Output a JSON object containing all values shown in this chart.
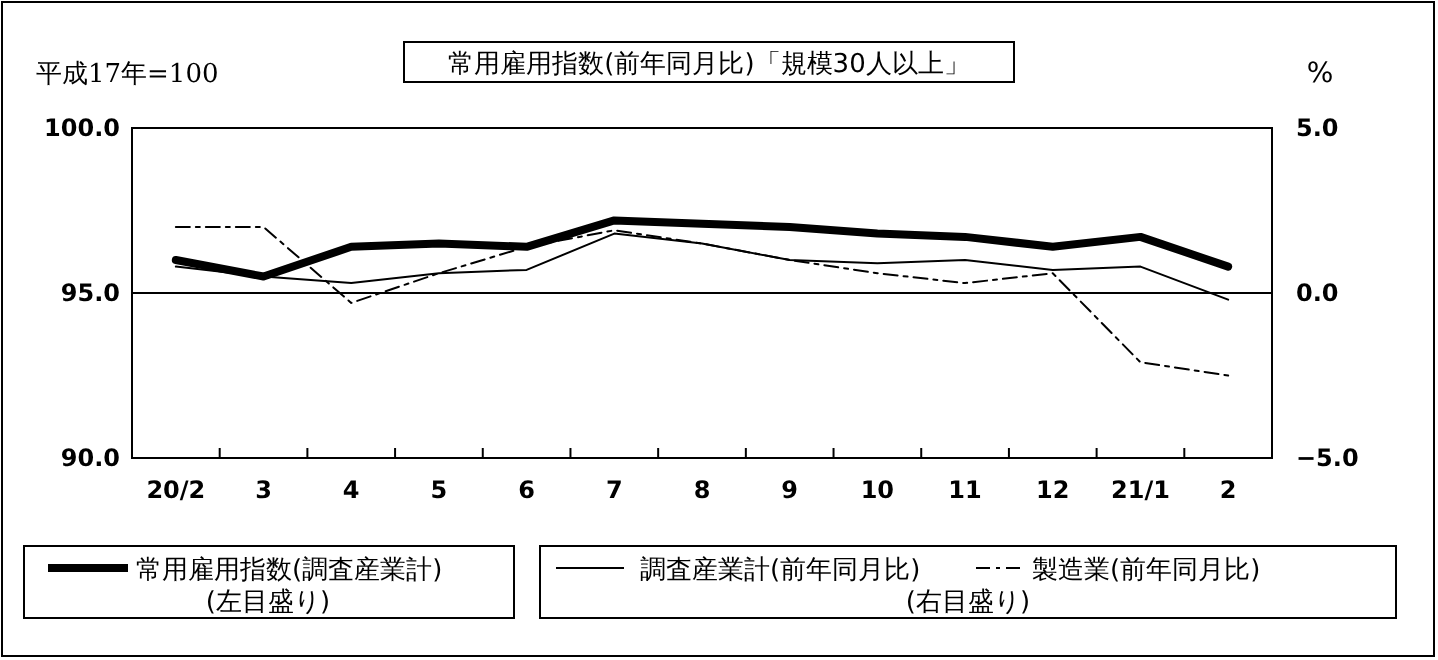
{
  "chart_data": {
    "type": "line",
    "title": "常用雇用指数(前年同月比)「規模30人以上」",
    "ylabel": "平成17年=100",
    "y2label": "%",
    "categories": [
      "20/2",
      "3",
      "4",
      "5",
      "6",
      "7",
      "8",
      "9",
      "10",
      "11",
      "12",
      "21/1",
      "2"
    ],
    "series": [
      {
        "name": "常用雇用指数(調査産業計)",
        "color": "#000000",
        "line_style": "solid",
        "values": [
          96.0,
          95.5,
          96.4,
          96.5,
          96.4,
          97.2,
          97.1,
          97.0,
          96.8,
          96.7,
          96.4,
          96.7,
          95.8
        ]
      },
      {
        "name": "調査産業計(前年同月比)",
        "color": "#000000",
        "axis": "y2",
        "line_style": "solid",
        "values": [
          0.8,
          0.5,
          0.3,
          0.6,
          0.7,
          1.8,
          1.5,
          1.0,
          0.9,
          1.0,
          0.7,
          0.8,
          -0.2
        ]
      },
      {
        "name": "製造業(前年同月比)",
        "color": "#000000",
        "axis": "y2",
        "line_style": "dashed",
        "values": [
          2.0,
          2.0,
          -0.3,
          0.6,
          1.4,
          1.9,
          1.5,
          1.0,
          0.6,
          0.3,
          0.6,
          -2.1,
          -2.5
        ]
      }
    ],
    "ylim": [
      90,
      100
    ],
    "yticks": [
      {
        "value": 90,
        "label": "90.0"
      },
      {
        "value": 95,
        "label": "95.0"
      },
      {
        "value": 100,
        "label": "100.0"
      }
    ],
    "y2lim": [
      -5,
      5
    ],
    "y2ticks": [
      {
        "value": -5,
        "label": "−5.0"
      },
      {
        "value": 0,
        "label": "0.0"
      },
      {
        "value": 5,
        "label": "5.0"
      }
    ],
    "ref_lines": [
      {
        "axis": "y",
        "value": 95,
        "label": null
      }
    ],
    "annotations": [
      "(左目盛り)",
      "(右目盛り)"
    ],
    "legend": "bottom",
    "grid": false,
    "marker": "none"
  }
}
